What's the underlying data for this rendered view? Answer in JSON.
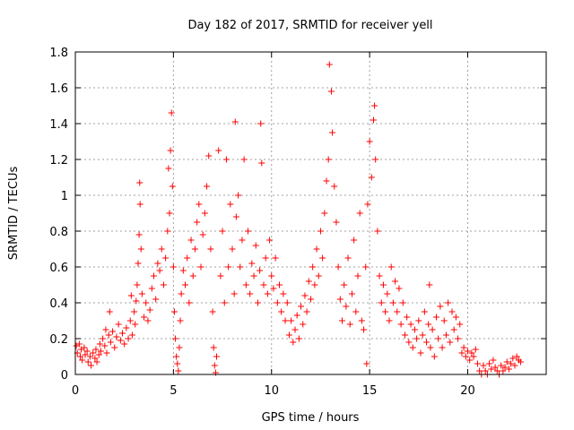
{
  "chart_data": {
    "type": "scatter",
    "title": "Day 182 of 2017, SRMTID for receiver yell",
    "xlabel": "GPS time / hours",
    "ylabel": "SRMTID / TECUs",
    "xlim": [
      0,
      24
    ],
    "ylim": [
      0,
      1.8
    ],
    "xticks": [
      0,
      5,
      10,
      15,
      20
    ],
    "xtick_labels": [
      "0",
      "5",
      "10",
      "15",
      "20"
    ],
    "yticks": [
      0,
      0.2,
      0.4,
      0.6,
      0.8,
      1,
      1.2,
      1.4,
      1.6,
      1.8
    ],
    "ytick_labels": [
      "0",
      "0.2",
      "0.4",
      "0.6",
      "0.8",
      "1",
      "1.2",
      "1.4",
      "1.6",
      "1.8"
    ],
    "grid": true,
    "marker": "+",
    "color": "#ff0000",
    "series": [
      {
        "name": "SRMTID",
        "points": [
          [
            0.05,
            0.16
          ],
          [
            0.1,
            0.12
          ],
          [
            0.2,
            0.17
          ],
          [
            0.25,
            0.1
          ],
          [
            0.3,
            0.14
          ],
          [
            0.35,
            0.08
          ],
          [
            0.45,
            0.15
          ],
          [
            0.5,
            0.11
          ],
          [
            0.6,
            0.13
          ],
          [
            0.65,
            0.07
          ],
          [
            0.75,
            0.1
          ],
          [
            0.8,
            0.05
          ],
          [
            0.9,
            0.12
          ],
          [
            1.0,
            0.09
          ],
          [
            1.05,
            0.14
          ],
          [
            1.1,
            0.07
          ],
          [
            1.2,
            0.11
          ],
          [
            1.25,
            0.17
          ],
          [
            1.3,
            0.13
          ],
          [
            1.4,
            0.2
          ],
          [
            1.5,
            0.16
          ],
          [
            1.55,
            0.25
          ],
          [
            1.6,
            0.12
          ],
          [
            1.7,
            0.22
          ],
          [
            1.75,
            0.35
          ],
          [
            1.8,
            0.18
          ],
          [
            1.9,
            0.24
          ],
          [
            2.0,
            0.15
          ],
          [
            2.1,
            0.21
          ],
          [
            2.2,
            0.28
          ],
          [
            2.3,
            0.19
          ],
          [
            2.4,
            0.23
          ],
          [
            2.5,
            0.17
          ],
          [
            2.6,
            0.26
          ],
          [
            2.7,
            0.2
          ],
          [
            2.8,
            0.3
          ],
          [
            2.85,
            0.44
          ],
          [
            2.9,
            0.22
          ],
          [
            3.0,
            0.35
          ],
          [
            3.05,
            0.28
          ],
          [
            3.1,
            0.41
          ],
          [
            3.15,
            0.5
          ],
          [
            3.2,
            0.62
          ],
          [
            3.25,
            0.78
          ],
          [
            3.28,
            1.07
          ],
          [
            3.3,
            0.95
          ],
          [
            3.35,
            0.7
          ],
          [
            3.4,
            0.45
          ],
          [
            3.5,
            0.32
          ],
          [
            3.6,
            0.4
          ],
          [
            3.7,
            0.3
          ],
          [
            3.8,
            0.36
          ],
          [
            3.9,
            0.48
          ],
          [
            4.0,
            0.55
          ],
          [
            4.1,
            0.42
          ],
          [
            4.2,
            0.62
          ],
          [
            4.3,
            0.58
          ],
          [
            4.4,
            0.7
          ],
          [
            4.5,
            0.5
          ],
          [
            4.6,
            0.65
          ],
          [
            4.7,
            0.8
          ],
          [
            4.75,
            1.15
          ],
          [
            4.8,
            0.9
          ],
          [
            4.85,
            1.25
          ],
          [
            4.9,
            1.46
          ],
          [
            4.95,
            1.05
          ],
          [
            5.0,
            0.6
          ],
          [
            5.05,
            0.35
          ],
          [
            5.1,
            0.2
          ],
          [
            5.15,
            0.1
          ],
          [
            5.2,
            0.06
          ],
          [
            5.25,
            0.02
          ],
          [
            5.3,
            0.15
          ],
          [
            5.35,
            0.3
          ],
          [
            5.4,
            0.45
          ],
          [
            5.5,
            0.58
          ],
          [
            5.6,
            0.5
          ],
          [
            5.7,
            0.65
          ],
          [
            5.8,
            0.4
          ],
          [
            5.9,
            0.75
          ],
          [
            6.0,
            0.55
          ],
          [
            6.1,
            0.7
          ],
          [
            6.2,
            0.85
          ],
          [
            6.3,
            0.95
          ],
          [
            6.4,
            0.6
          ],
          [
            6.5,
            0.78
          ],
          [
            6.6,
            0.9
          ],
          [
            6.7,
            1.05
          ],
          [
            6.8,
            1.22
          ],
          [
            6.9,
            0.7
          ],
          [
            7.0,
            0.35
          ],
          [
            7.05,
            0.15
          ],
          [
            7.1,
            0.05
          ],
          [
            7.15,
            0.01
          ],
          [
            7.2,
            0.1
          ],
          [
            7.3,
            1.25
          ],
          [
            7.4,
            0.55
          ],
          [
            7.5,
            0.8
          ],
          [
            7.6,
            0.4
          ],
          [
            7.7,
            1.2
          ],
          [
            7.8,
            0.6
          ],
          [
            7.9,
            0.95
          ],
          [
            8.0,
            0.7
          ],
          [
            8.1,
            0.45
          ],
          [
            8.15,
            1.41
          ],
          [
            8.2,
            0.88
          ],
          [
            8.3,
            1.0
          ],
          [
            8.4,
            0.6
          ],
          [
            8.5,
            0.75
          ],
          [
            8.6,
            1.2
          ],
          [
            8.7,
            0.5
          ],
          [
            8.8,
            0.8
          ],
          [
            8.9,
            0.45
          ],
          [
            9.0,
            0.62
          ],
          [
            9.1,
            0.55
          ],
          [
            9.2,
            0.72
          ],
          [
            9.3,
            0.4
          ],
          [
            9.4,
            0.58
          ],
          [
            9.45,
            1.4
          ],
          [
            9.5,
            1.18
          ],
          [
            9.6,
            0.5
          ],
          [
            9.7,
            0.65
          ],
          [
            9.8,
            0.45
          ],
          [
            9.9,
            0.75
          ],
          [
            10.0,
            0.55
          ],
          [
            10.1,
            0.48
          ],
          [
            10.2,
            0.65
          ],
          [
            10.3,
            0.4
          ],
          [
            10.4,
            0.5
          ],
          [
            10.5,
            0.35
          ],
          [
            10.6,
            0.45
          ],
          [
            10.7,
            0.3
          ],
          [
            10.8,
            0.4
          ],
          [
            10.9,
            0.22
          ],
          [
            11.0,
            0.3
          ],
          [
            11.1,
            0.18
          ],
          [
            11.2,
            0.25
          ],
          [
            11.3,
            0.33
          ],
          [
            11.4,
            0.2
          ],
          [
            11.5,
            0.38
          ],
          [
            11.6,
            0.28
          ],
          [
            11.7,
            0.44
          ],
          [
            11.8,
            0.35
          ],
          [
            11.9,
            0.52
          ],
          [
            12.0,
            0.42
          ],
          [
            12.1,
            0.6
          ],
          [
            12.2,
            0.5
          ],
          [
            12.3,
            0.7
          ],
          [
            12.4,
            0.55
          ],
          [
            12.5,
            0.8
          ],
          [
            12.6,
            0.65
          ],
          [
            12.7,
            0.9
          ],
          [
            12.8,
            1.08
          ],
          [
            12.9,
            1.2
          ],
          [
            12.95,
            1.73
          ],
          [
            13.05,
            1.58
          ],
          [
            13.1,
            1.35
          ],
          [
            13.2,
            1.05
          ],
          [
            13.3,
            0.85
          ],
          [
            13.4,
            0.6
          ],
          [
            13.5,
            0.42
          ],
          [
            13.6,
            0.3
          ],
          [
            13.7,
            0.5
          ],
          [
            13.8,
            0.38
          ],
          [
            13.9,
            0.65
          ],
          [
            14.0,
            0.28
          ],
          [
            14.1,
            0.45
          ],
          [
            14.2,
            0.75
          ],
          [
            14.3,
            0.35
          ],
          [
            14.4,
            0.55
          ],
          [
            14.5,
            0.9
          ],
          [
            14.6,
            0.3
          ],
          [
            14.7,
            0.25
          ],
          [
            14.8,
            0.6
          ],
          [
            14.85,
            0.06
          ],
          [
            14.9,
            0.95
          ],
          [
            15.0,
            1.3
          ],
          [
            15.1,
            1.1
          ],
          [
            15.2,
            1.42
          ],
          [
            15.25,
            1.5
          ],
          [
            15.3,
            1.2
          ],
          [
            15.4,
            0.8
          ],
          [
            15.5,
            0.55
          ],
          [
            15.6,
            0.4
          ],
          [
            15.7,
            0.5
          ],
          [
            15.8,
            0.35
          ],
          [
            15.9,
            0.45
          ],
          [
            16.0,
            0.3
          ],
          [
            16.1,
            0.6
          ],
          [
            16.2,
            0.4
          ],
          [
            16.3,
            0.52
          ],
          [
            16.4,
            0.35
          ],
          [
            16.5,
            0.48
          ],
          [
            16.6,
            0.28
          ],
          [
            16.7,
            0.4
          ],
          [
            16.8,
            0.22
          ],
          [
            16.9,
            0.32
          ],
          [
            17.0,
            0.18
          ],
          [
            17.1,
            0.28
          ],
          [
            17.2,
            0.15
          ],
          [
            17.3,
            0.25
          ],
          [
            17.4,
            0.2
          ],
          [
            17.5,
            0.3
          ],
          [
            17.6,
            0.12
          ],
          [
            17.7,
            0.22
          ],
          [
            17.8,
            0.35
          ],
          [
            17.9,
            0.18
          ],
          [
            18.0,
            0.28
          ],
          [
            18.05,
            0.5
          ],
          [
            18.1,
            0.15
          ],
          [
            18.2,
            0.25
          ],
          [
            18.3,
            0.1
          ],
          [
            18.4,
            0.32
          ],
          [
            18.5,
            0.2
          ],
          [
            18.6,
            0.38
          ],
          [
            18.7,
            0.15
          ],
          [
            18.8,
            0.3
          ],
          [
            18.9,
            0.22
          ],
          [
            19.0,
            0.4
          ],
          [
            19.1,
            0.18
          ],
          [
            19.2,
            0.35
          ],
          [
            19.3,
            0.25
          ],
          [
            19.4,
            0.32
          ],
          [
            19.5,
            0.2
          ],
          [
            19.6,
            0.28
          ],
          [
            19.7,
            0.12
          ],
          [
            19.8,
            0.15
          ],
          [
            19.9,
            0.1
          ],
          [
            20.0,
            0.13
          ],
          [
            20.1,
            0.08
          ],
          [
            20.2,
            0.12
          ],
          [
            20.3,
            0.1
          ],
          [
            20.4,
            0.14
          ],
          [
            20.5,
            0.06
          ],
          [
            20.6,
            0.02
          ],
          [
            20.7,
            0.0
          ],
          [
            20.8,
            0.05
          ],
          [
            20.9,
            0.02
          ],
          [
            21.0,
            0.0
          ],
          [
            21.1,
            0.06
          ],
          [
            21.2,
            0.03
          ],
          [
            21.3,
            0.08
          ],
          [
            21.4,
            0.04
          ],
          [
            21.5,
            0.02
          ],
          [
            21.6,
            0.0
          ],
          [
            21.7,
            0.05
          ],
          [
            21.8,
            0.02
          ],
          [
            21.9,
            0.04
          ],
          [
            22.0,
            0.07
          ],
          [
            22.1,
            0.03
          ],
          [
            22.2,
            0.06
          ],
          [
            22.3,
            0.09
          ],
          [
            22.4,
            0.05
          ],
          [
            22.5,
            0.1
          ],
          [
            22.6,
            0.08
          ],
          [
            22.7,
            0.07
          ]
        ]
      }
    ]
  }
}
